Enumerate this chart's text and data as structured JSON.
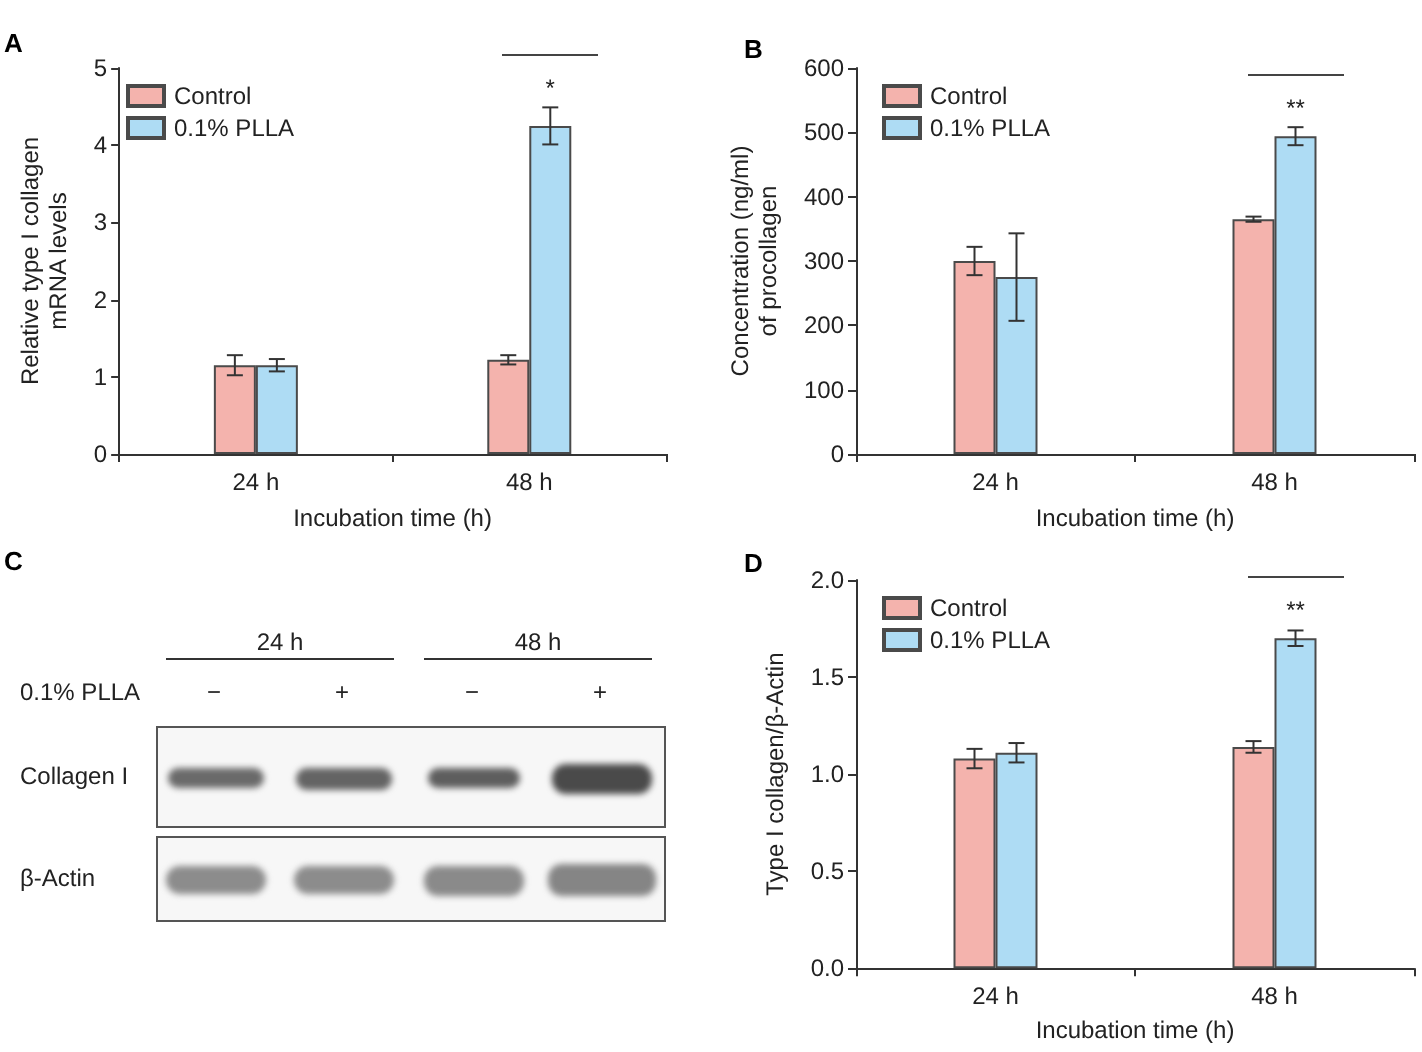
{
  "chart_data": [
    {
      "type": "bar",
      "title": "A",
      "xlabel": "Incubation time (h)",
      "ylabel": "Relative type I collagen mRNA levels",
      "categories": [
        "24 h",
        "48 h"
      ],
      "series": [
        {
          "name": "Control",
          "color": "#f4b3ad",
          "values": [
            1.15,
            1.22
          ],
          "errors": [
            0.13,
            0.06
          ]
        },
        {
          "name": "0.1% PLLA",
          "color": "#aedcf4",
          "values": [
            1.15,
            4.25
          ],
          "errors": [
            0.08,
            0.24
          ]
        }
      ],
      "ylim": [
        0,
        5
      ],
      "yticks": [
        0,
        1,
        2,
        3,
        4,
        5
      ],
      "legend": "top left",
      "annotations": [
        "*"
      ]
    },
    {
      "type": "bar",
      "title": "B",
      "xlabel": "Incubation time (h)",
      "ylabel": "Concentration (ng/ml) of procollagen",
      "categories": [
        "24 h",
        "48 h"
      ],
      "series": [
        {
          "name": "Control",
          "color": "#f4b3ad",
          "values": [
            300,
            365
          ],
          "errors": [
            22,
            4
          ]
        },
        {
          "name": "0.1% PLLA",
          "color": "#aedcf4",
          "values": [
            275,
            494
          ],
          "errors": [
            68,
            14
          ]
        }
      ],
      "ylim": [
        0,
        600
      ],
      "yticks": [
        0,
        100,
        200,
        300,
        400,
        500,
        600
      ],
      "legend": "top left",
      "annotations": [
        "**"
      ]
    },
    {
      "type": "other",
      "title": "C",
      "annotations": [
        "24 h",
        "48 h",
        "0.1% PLLA",
        "−",
        "+",
        "−",
        "+",
        "Collagen I",
        "β-Actin"
      ]
    },
    {
      "type": "bar",
      "title": "D",
      "xlabel": "Incubation time (h)",
      "ylabel": "Type I collagen/β-Actin",
      "categories": [
        "24 h",
        "48 h"
      ],
      "series": [
        {
          "name": "Control",
          "color": "#f4b3ad",
          "values": [
            1.08,
            1.14
          ],
          "errors": [
            0.05,
            0.03
          ]
        },
        {
          "name": "0.1% PLLA",
          "color": "#aedcf4",
          "values": [
            1.11,
            1.7
          ],
          "errors": [
            0.05,
            0.04
          ]
        }
      ],
      "ylim": [
        0,
        2
      ],
      "yticks": [
        {
          "value": 0,
          "label": "0.0"
        },
        {
          "value": 0.5,
          "label": "0.5"
        },
        {
          "value": 1,
          "label": "1.0"
        },
        {
          "value": 1.5,
          "label": "1.5"
        },
        {
          "value": 2,
          "label": "2.0"
        }
      ],
      "legend": "top left",
      "annotations": [
        "**"
      ]
    }
  ]
}
